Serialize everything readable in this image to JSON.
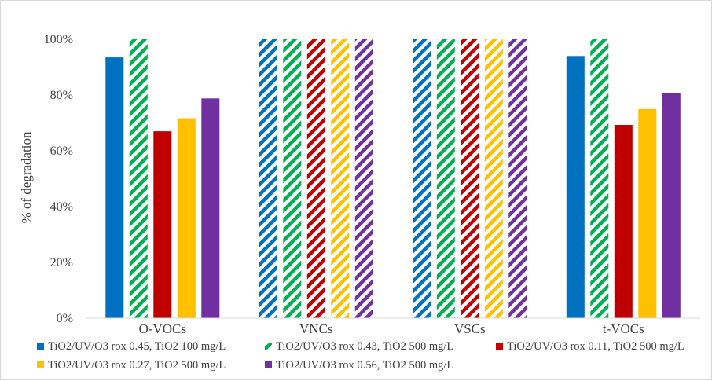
{
  "chart_data": {
    "type": "bar",
    "title": "",
    "xlabel": "",
    "ylabel": "% of degradation",
    "ylim": [
      0,
      1
    ],
    "yticks": [
      "0%",
      "20%",
      "40%",
      "60%",
      "80%",
      "100%"
    ],
    "grid": false,
    "legend_position": "bottom",
    "categories": [
      "O-VOCs",
      "VNCs",
      "VSCs",
      "t-VOCs"
    ],
    "series": [
      {
        "name": "TiO2/UV/O3 rox 0.45, TiO2 100 mg/L",
        "color": "#0070c0",
        "pattern": [
          "solid",
          "striped",
          "striped",
          "solid"
        ],
        "values": [
          0.935,
          1.0,
          1.0,
          0.94
        ]
      },
      {
        "name": "TiO2/UV/O3 rox 0.43, TiO2 500 mg/L",
        "color": "#00b050",
        "pattern": [
          "striped",
          "striped",
          "striped",
          "striped"
        ],
        "values": [
          1.0,
          1.0,
          1.0,
          1.0
        ]
      },
      {
        "name": "TiO2/UV/O3 rox 0.11, TiO2 500 mg/L",
        "color": "#c00000",
        "pattern": [
          "solid",
          "striped",
          "striped",
          "solid"
        ],
        "values": [
          0.67,
          1.0,
          1.0,
          0.693
        ]
      },
      {
        "name": "TiO2/UV/O3 rox 0.27, TiO2 500 mg/L",
        "color": "#ffc000",
        "pattern": [
          "solid",
          "striped",
          "striped",
          "solid"
        ],
        "values": [
          0.717,
          1.0,
          1.0,
          0.75
        ]
      },
      {
        "name": "TiO2/UV/O3 rox 0.56, TiO2 500 mg/L",
        "color": "#7030a0",
        "pattern": [
          "solid",
          "striped",
          "striped",
          "solid"
        ],
        "values": [
          0.788,
          1.0,
          1.0,
          0.807
        ]
      }
    ]
  }
}
